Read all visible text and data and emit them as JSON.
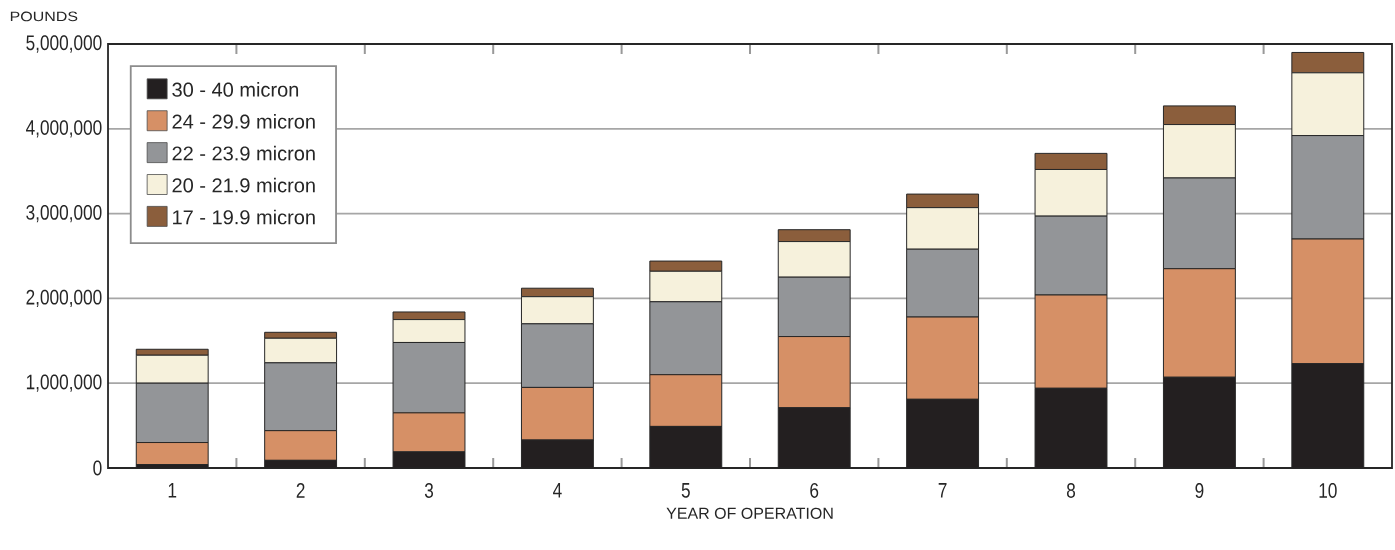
{
  "chart_data": {
    "type": "bar",
    "stacked": true,
    "xlabel": "YEAR OF OPERATION",
    "ylabel": "POUNDS",
    "categories": [
      "1",
      "2",
      "3",
      "4",
      "5",
      "6",
      "7",
      "8",
      "9",
      "10"
    ],
    "ylim": [
      0,
      5000000
    ],
    "yticks": [
      {
        "value": 0,
        "label": "0"
      },
      {
        "value": 1000000,
        "label": "1,000,000"
      },
      {
        "value": 2000000,
        "label": "2,000,000"
      },
      {
        "value": 3000000,
        "label": "3,000,000"
      },
      {
        "value": 4000000,
        "label": "4,000,000"
      },
      {
        "value": 5000000,
        "label": "5,000,000"
      }
    ],
    "grid": "y",
    "legend": "top left",
    "series": [
      {
        "name": "30 - 40 micron",
        "color": "#231f20",
        "values": [
          40000,
          90000,
          190000,
          330000,
          490000,
          710000,
          810000,
          940000,
          1070000,
          1230000
        ]
      },
      {
        "name": "24 - 29.9 micron",
        "color": "#d69066",
        "values": [
          260000,
          350000,
          460000,
          620000,
          610000,
          840000,
          970000,
          1100000,
          1280000,
          1470000
        ]
      },
      {
        "name": "22 - 23.9 micron",
        "color": "#939598",
        "values": [
          700000,
          800000,
          830000,
          750000,
          860000,
          700000,
          800000,
          930000,
          1070000,
          1220000
        ]
      },
      {
        "name": "20 - 21.9 micron",
        "color": "#f6f1dc",
        "values": [
          330000,
          290000,
          270000,
          320000,
          360000,
          420000,
          490000,
          550000,
          630000,
          740000
        ]
      },
      {
        "name": "17 - 19.9 micron",
        "color": "#8b5e3c",
        "values": [
          70000,
          70000,
          90000,
          100000,
          120000,
          140000,
          160000,
          190000,
          220000,
          240000
        ]
      }
    ]
  }
}
